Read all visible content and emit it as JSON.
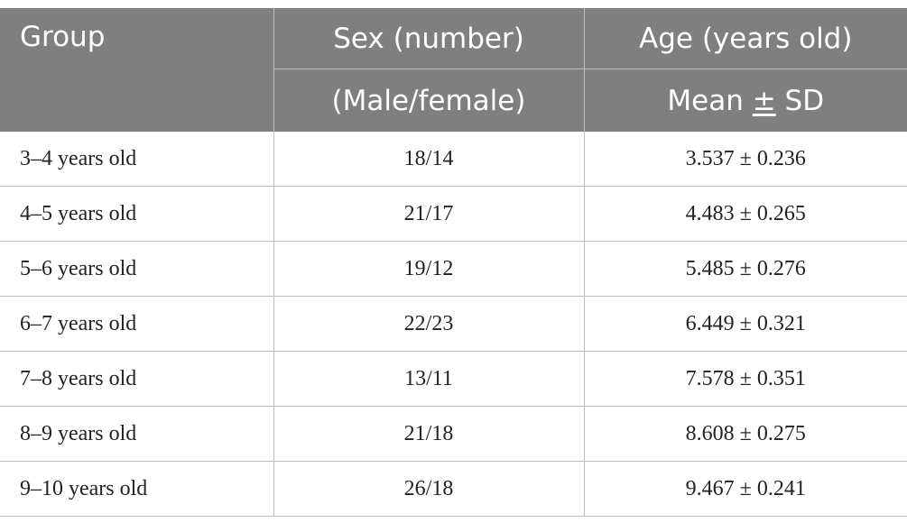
{
  "table": {
    "header": {
      "group": "Group",
      "sex_line1": "Sex (number)",
      "sex_line2": "(Male/female)",
      "age_line1": "Age (years old)",
      "age_line2_mean": "Mean ",
      "age_line2_pm": "±",
      "age_line2_sd": " SD"
    },
    "rows": [
      {
        "group": "3–4 years old",
        "sex": "18/14",
        "age": "3.537 ± 0.236"
      },
      {
        "group": "4–5 years old",
        "sex": "21/17",
        "age": "4.483 ± 0.265"
      },
      {
        "group": "5–6 years old",
        "sex": "19/12",
        "age": "5.485 ± 0.276"
      },
      {
        "group": "6–7 years old",
        "sex": "22/23",
        "age": "6.449 ± 0.321"
      },
      {
        "group": "7–8 years old",
        "sex": "13/11",
        "age": "7.578 ± 0.351"
      },
      {
        "group": "8–9 years old",
        "sex": "21/18",
        "age": "8.608 ± 0.275"
      },
      {
        "group": "9–10 years old",
        "sex": "26/18",
        "age": "9.467 ± 0.241"
      }
    ]
  },
  "colors": {
    "header_bg": "#7f7f7f",
    "header_text": "#ffffff",
    "grid_line": "#bdbdbd"
  }
}
